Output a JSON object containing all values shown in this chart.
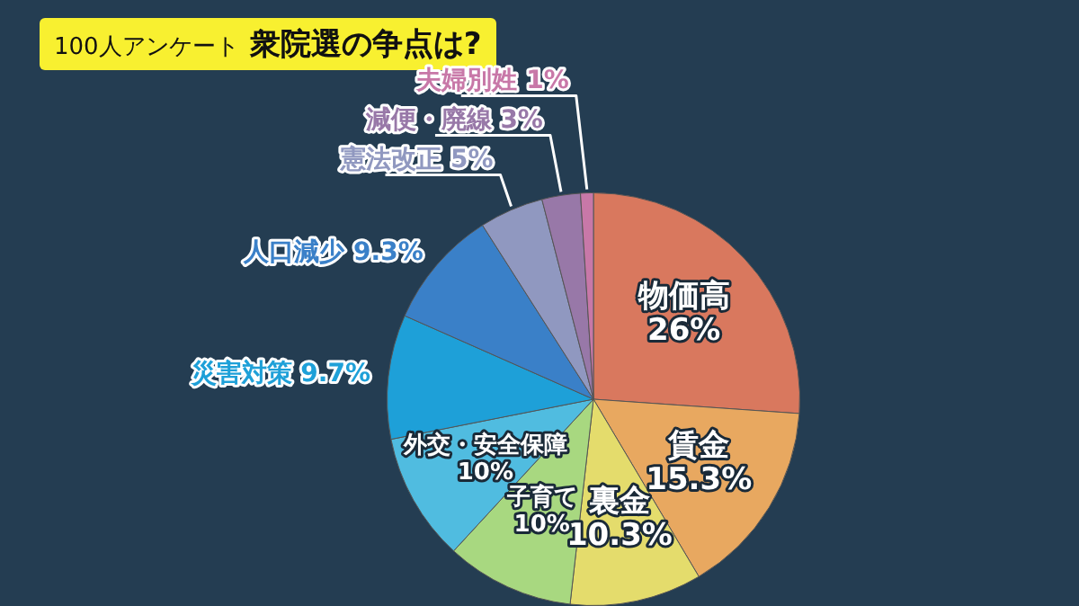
{
  "chart_data": {
    "type": "pie",
    "title": "100人アンケート",
    "subtitle": "衆院選の争点は?",
    "categories": [
      "物価高",
      "賃金",
      "裏金",
      "子育て",
      "外交・安全保障",
      "災害対策",
      "人口減少",
      "憲法改正",
      "減便・廃線",
      "夫婦別姓"
    ],
    "values": [
      26,
      15.3,
      10.3,
      10,
      10,
      9.7,
      9.3,
      5,
      3,
      1
    ],
    "value_labels": [
      "26%",
      "15.3%",
      "10.3%",
      "10%",
      "10%",
      "9.7%",
      "9.3%",
      "5%",
      "3%",
      "1%"
    ],
    "colors": [
      "#d9785e",
      "#e8a860",
      "#e4dc6c",
      "#a8d880",
      "#50bce0",
      "#1ea0d8",
      "#3a80c8",
      "#9098c0",
      "#9878a8",
      "#c878a8"
    ]
  }
}
